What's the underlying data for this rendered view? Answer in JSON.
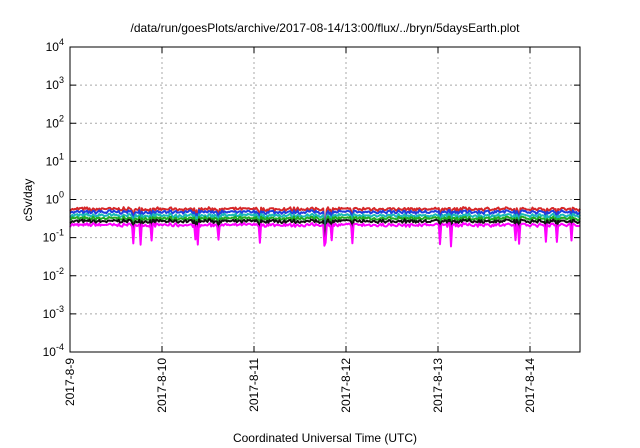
{
  "chart_data": {
    "type": "line",
    "title": "/data/run/goesPlots/archive/2017-08-14/13:00/flux/../bryn/5daysEarth.plot",
    "xlabel": "Coordinated Universal Time (UTC)",
    "ylabel": "cSv/day",
    "yscale": "log",
    "ylim": [
      0.0001,
      10000
    ],
    "xlim": [
      "2017-08-09",
      "2017-08-14T13:00"
    ],
    "grid": true,
    "xticks": [
      "2017-8-9",
      "2017-8-10",
      "2017-8-11",
      "2017-8-12",
      "2017-8-13",
      "2017-8-14"
    ],
    "yticks": [
      {
        "base": "10",
        "exp": "-4"
      },
      {
        "base": "10",
        "exp": "-3"
      },
      {
        "base": "10",
        "exp": "-2"
      },
      {
        "base": "10",
        "exp": "-1"
      },
      {
        "base": "10",
        "exp": "0"
      },
      {
        "base": "10",
        "exp": "1"
      },
      {
        "base": "10",
        "exp": "2"
      },
      {
        "base": "10",
        "exp": "3"
      },
      {
        "base": "10",
        "exp": "4"
      }
    ],
    "series": [
      {
        "color": "#d62728",
        "baseline": 0.56
      },
      {
        "color": "#1f3fe0",
        "baseline": 0.47
      },
      {
        "color": "#19b8b8",
        "baseline": 0.38
      },
      {
        "color": "#22aa22",
        "baseline": 0.32
      },
      {
        "color": "#111111",
        "baseline": 0.27
      },
      {
        "color": "#ff00ff",
        "baseline": 0.215
      }
    ]
  }
}
